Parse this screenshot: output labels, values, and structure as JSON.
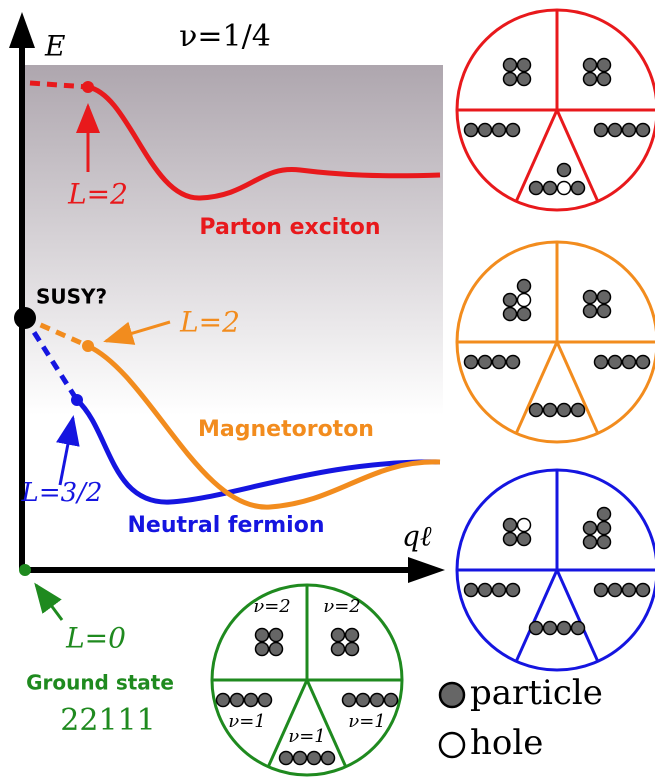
{
  "title": "ν=1/4",
  "axes": {
    "y_label": "E",
    "x_label": "qℓ"
  },
  "curves": [
    {
      "name": "Parton exciton",
      "momentum_label": "L=2"
    },
    {
      "name": "Magnetoroton",
      "momentum_label": "L=2"
    },
    {
      "name": "Neutral fermion",
      "momentum_label": "L=3/2"
    }
  ],
  "susy_label": "SUSY?",
  "ground_state": {
    "momentum_label": "L=0",
    "name": "Ground state",
    "pattern": "22111",
    "fillings": [
      "ν=2",
      "ν=2",
      "ν=1",
      "ν=1",
      "ν=1"
    ]
  },
  "legend": {
    "particle": "particle",
    "hole": "hole"
  }
}
